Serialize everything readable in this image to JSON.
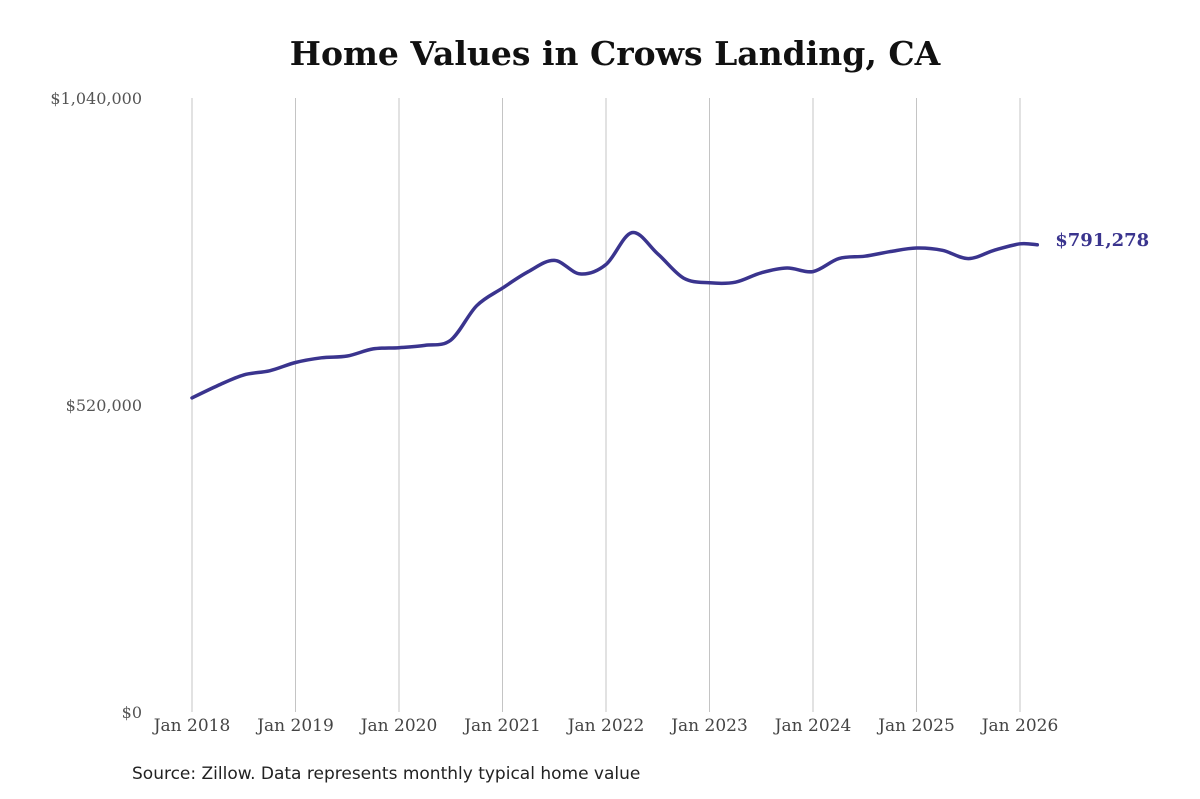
{
  "chart_data": {
    "type": "line",
    "title": "Home Values in Crows Landing, CA",
    "xlabel": "",
    "ylabel": "",
    "ylim": [
      0,
      1040000
    ],
    "yticks": [
      {
        "value": 0,
        "label": "$0"
      },
      {
        "value": 520000,
        "label": "$520,000"
      },
      {
        "value": 1040000,
        "label": "$1,040,000"
      }
    ],
    "xticks": [
      {
        "value": 2018,
        "label": "Jan 2018"
      },
      {
        "value": 2019,
        "label": "Jan 2019"
      },
      {
        "value": 2020,
        "label": "Jan 2020"
      },
      {
        "value": 2021,
        "label": "Jan 2021"
      },
      {
        "value": 2022,
        "label": "Jan 2022"
      },
      {
        "value": 2023,
        "label": "Jan 2023"
      },
      {
        "value": 2024,
        "label": "Jan 2024"
      },
      {
        "value": 2025,
        "label": "Jan 2025"
      },
      {
        "value": 2026,
        "label": "Jan 2026"
      }
    ],
    "grid": "vertical",
    "line_color": "#3a348e",
    "end_label": "$791,278",
    "series": [
      {
        "x": [
          "2018-01",
          "2018-04",
          "2018-07",
          "2018-10",
          "2019-01",
          "2019-04",
          "2019-07",
          "2019-10",
          "2020-01",
          "2020-04",
          "2020-07",
          "2020-10",
          "2021-01",
          "2021-04",
          "2021-07",
          "2021-10",
          "2022-01",
          "2022-04",
          "2022-07",
          "2022-10",
          "2023-01",
          "2023-04",
          "2023-07",
          "2023-10",
          "2024-01",
          "2024-04",
          "2024-07",
          "2024-10",
          "2025-01",
          "2025-04",
          "2025-07",
          "2025-10",
          "2026-01",
          "2026-03"
        ],
        "values": [
          532000,
          553000,
          571000,
          578000,
          592000,
          600000,
          603000,
          615000,
          617000,
          621000,
          630000,
          688000,
          718000,
          746000,
          765000,
          742000,
          758000,
          812000,
          776000,
          735000,
          727000,
          728000,
          744000,
          752000,
          746000,
          768000,
          772000,
          780000,
          786000,
          782000,
          768000,
          782000,
          793000,
          791278
        ]
      }
    ]
  },
  "source": "Source: Zillow. Data represents monthly typical home value"
}
